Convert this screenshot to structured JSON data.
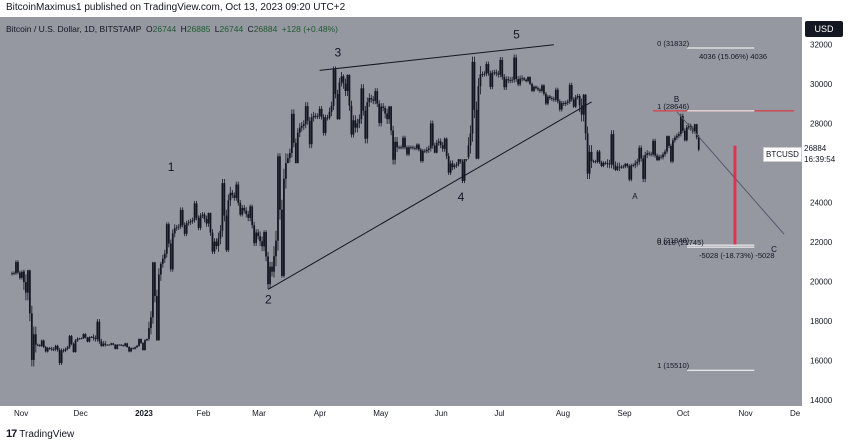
{
  "header": {
    "publisher_text": "BitcoinMaximus1 published on TradingView.com, Oct 13, 2023 09:20 UTC+2",
    "symbol_title": "Bitcoin / U.S. Dollar, 1D, BITSTAMP",
    "ohlc": {
      "o_label": "O",
      "o": "26744",
      "h_label": "H",
      "h": "26885",
      "l_label": "L",
      "l": "26744",
      "c_label": "C",
      "c": "26884",
      "chg": "+128 (+0.48%)"
    }
  },
  "price_axis": {
    "currency_button": "USD",
    "ticks": [
      "32000",
      "30000",
      "28000",
      "26000",
      "24000",
      "22000",
      "20000",
      "18000",
      "16000",
      "14000"
    ],
    "last_price": "26884",
    "countdown": "16:39:54",
    "symbol_tag": "BTCUSD"
  },
  "time_axis": {
    "labels": [
      "Nov",
      "Dec",
      "2023",
      "Feb",
      "Mar",
      "Apr",
      "May",
      "Jun",
      "Jul",
      "Aug",
      "Sep",
      "Oct",
      "Nov",
      "De"
    ]
  },
  "footer": {
    "brand": "TradingView",
    "brand_mark": "17"
  },
  "colors": {
    "background": "#9598a1",
    "candle": "#131722",
    "resistance": "#e8242f",
    "target_bar": "#e8243f",
    "fib_line": "#ffffff"
  },
  "chart_data": {
    "type": "candlestick",
    "symbol": "BTCUSD",
    "timeframe": "1D",
    "ylim": [
      14000,
      33000
    ],
    "x_range": [
      "2022-11-01",
      "2023-12-01"
    ],
    "wave_labels": [
      {
        "label": "1",
        "date": "2023-01-20",
        "price": 25100
      },
      {
        "label": "2",
        "date": "2023-03-10",
        "price": 19600
      },
      {
        "label": "3",
        "date": "2023-04-14",
        "price": 30900
      },
      {
        "label": "4",
        "date": "2023-06-15",
        "price": 24800
      },
      {
        "label": "5",
        "date": "2023-07-13",
        "price": 31800
      },
      {
        "label": "A",
        "date": "2023-09-11",
        "price": 24900
      },
      {
        "label": "B",
        "date": "2023-10-02",
        "price": 28600
      },
      {
        "label": "C",
        "date": "2023-11-20",
        "price": 22200
      }
    ],
    "trendlines": [
      {
        "name": "upper-wedge",
        "from": {
          "date": "2023-04-05",
          "price": 30700
        },
        "to": {
          "date": "2023-08-01",
          "price": 32000
        }
      },
      {
        "name": "lower-wedge",
        "from": {
          "date": "2023-03-10",
          "price": 19600
        },
        "to": {
          "date": "2023-08-20",
          "price": 29100
        }
      },
      {
        "name": "projection",
        "from": {
          "date": "2023-10-02",
          "price": 28600
        },
        "to": {
          "date": "2023-11-25",
          "price": 22400
        }
      }
    ],
    "fib_levels": [
      {
        "label": "0 (31832)",
        "price": 31832,
        "note": "4036 (15.06%) 4036"
      },
      {
        "label": "1 (28646)",
        "price": 28646
      },
      {
        "label": "0 (21848)",
        "price": 21848
      },
      {
        "label": "0.618 (21745)",
        "price": 21745,
        "note": "-5028 (-18.73%) -5028"
      },
      {
        "label": "1 (15510)",
        "price": 15510
      }
    ],
    "resistance_line": {
      "price": 28646
    },
    "target_range": {
      "from_price": 26884,
      "to_price": 21848
    },
    "series": [
      {
        "ohlc_weekly": [
          [
            "2022-11-01",
            20400,
            21200,
            20100,
            20500
          ],
          [
            "2022-11-07",
            20500,
            20600,
            15700,
            16800
          ],
          [
            "2022-11-14",
            16800,
            17100,
            16400,
            16600
          ],
          [
            "2022-11-21",
            16600,
            16800,
            15600,
            16500
          ],
          [
            "2022-11-28",
            16500,
            17300,
            16400,
            17100
          ],
          [
            "2022-12-05",
            17100,
            17400,
            16900,
            17200
          ],
          [
            "2022-12-12",
            17200,
            18300,
            16700,
            16800
          ],
          [
            "2022-12-19",
            16800,
            16900,
            16500,
            16800
          ],
          [
            "2022-12-26",
            16800,
            16900,
            16400,
            16600
          ],
          [
            "2023-01-02",
            16600,
            17100,
            16500,
            17100
          ],
          [
            "2023-01-09",
            17100,
            21000,
            17000,
            20900
          ],
          [
            "2023-01-16",
            20900,
            23000,
            20500,
            22700
          ],
          [
            "2023-01-23",
            22700,
            23900,
            22300,
            23000
          ],
          [
            "2023-01-30",
            23000,
            24200,
            22600,
            23400
          ],
          [
            "2023-02-06",
            23400,
            23500,
            21400,
            21800
          ],
          [
            "2023-02-13",
            21800,
            25200,
            21500,
            24500
          ],
          [
            "2023-02-20",
            24500,
            25100,
            23300,
            23600
          ],
          [
            "2023-02-27",
            23600,
            23900,
            21800,
            22300
          ],
          [
            "2023-03-06",
            22300,
            22600,
            19600,
            20500
          ],
          [
            "2023-03-13",
            20500,
            26500,
            20200,
            26000
          ],
          [
            "2023-03-20",
            26000,
            28800,
            26000,
            27800
          ],
          [
            "2023-03-27",
            27800,
            29100,
            26600,
            28400
          ],
          [
            "2023-04-03",
            28400,
            28900,
            27200,
            28300
          ],
          [
            "2023-04-10",
            28300,
            30900,
            28200,
            30400
          ],
          [
            "2023-04-17",
            30400,
            30500,
            27300,
            27800
          ],
          [
            "2023-04-24",
            27800,
            30000,
            27000,
            29300
          ],
          [
            "2023-05-01",
            29300,
            29800,
            27700,
            28800
          ],
          [
            "2023-05-08",
            28800,
            28900,
            25900,
            26800
          ],
          [
            "2023-05-15",
            26800,
            27500,
            26300,
            26800
          ],
          [
            "2023-05-22",
            26800,
            27000,
            25900,
            26600
          ],
          [
            "2023-05-29",
            26600,
            28400,
            26500,
            27100
          ],
          [
            "2023-06-05",
            27100,
            27300,
            25400,
            25800
          ],
          [
            "2023-06-12",
            25800,
            26200,
            24800,
            26300
          ],
          [
            "2023-06-19",
            26300,
            31400,
            26200,
            30500
          ],
          [
            "2023-06-26",
            30500,
            31200,
            29600,
            30600
          ],
          [
            "2023-07-03",
            30600,
            31500,
            29700,
            30200
          ],
          [
            "2023-07-10",
            30200,
            31800,
            29900,
            30300
          ],
          [
            "2023-07-17",
            30300,
            30400,
            29600,
            29800
          ],
          [
            "2023-07-24",
            29800,
            30000,
            28900,
            29300
          ],
          [
            "2023-07-31",
            29300,
            29900,
            28600,
            29000
          ],
          [
            "2023-08-07",
            29000,
            30200,
            28800,
            29400
          ],
          [
            "2023-08-14",
            29400,
            29500,
            25200,
            26100
          ],
          [
            "2023-08-21",
            26100,
            26800,
            25800,
            26000
          ],
          [
            "2023-08-28",
            26000,
            28100,
            25600,
            25800
          ],
          [
            "2023-09-04",
            25800,
            26000,
            24900,
            25900
          ],
          [
            "2023-09-11",
            25900,
            26900,
            24900,
            26500
          ],
          [
            "2023-09-18",
            26500,
            27400,
            26100,
            26300
          ],
          [
            "2023-09-25",
            26300,
            27400,
            26000,
            27300
          ],
          [
            "2023-10-02",
            27300,
            28600,
            27100,
            27900
          ],
          [
            "2023-10-09",
            27900,
            28000,
            26600,
            26884
          ]
        ]
      }
    ]
  }
}
